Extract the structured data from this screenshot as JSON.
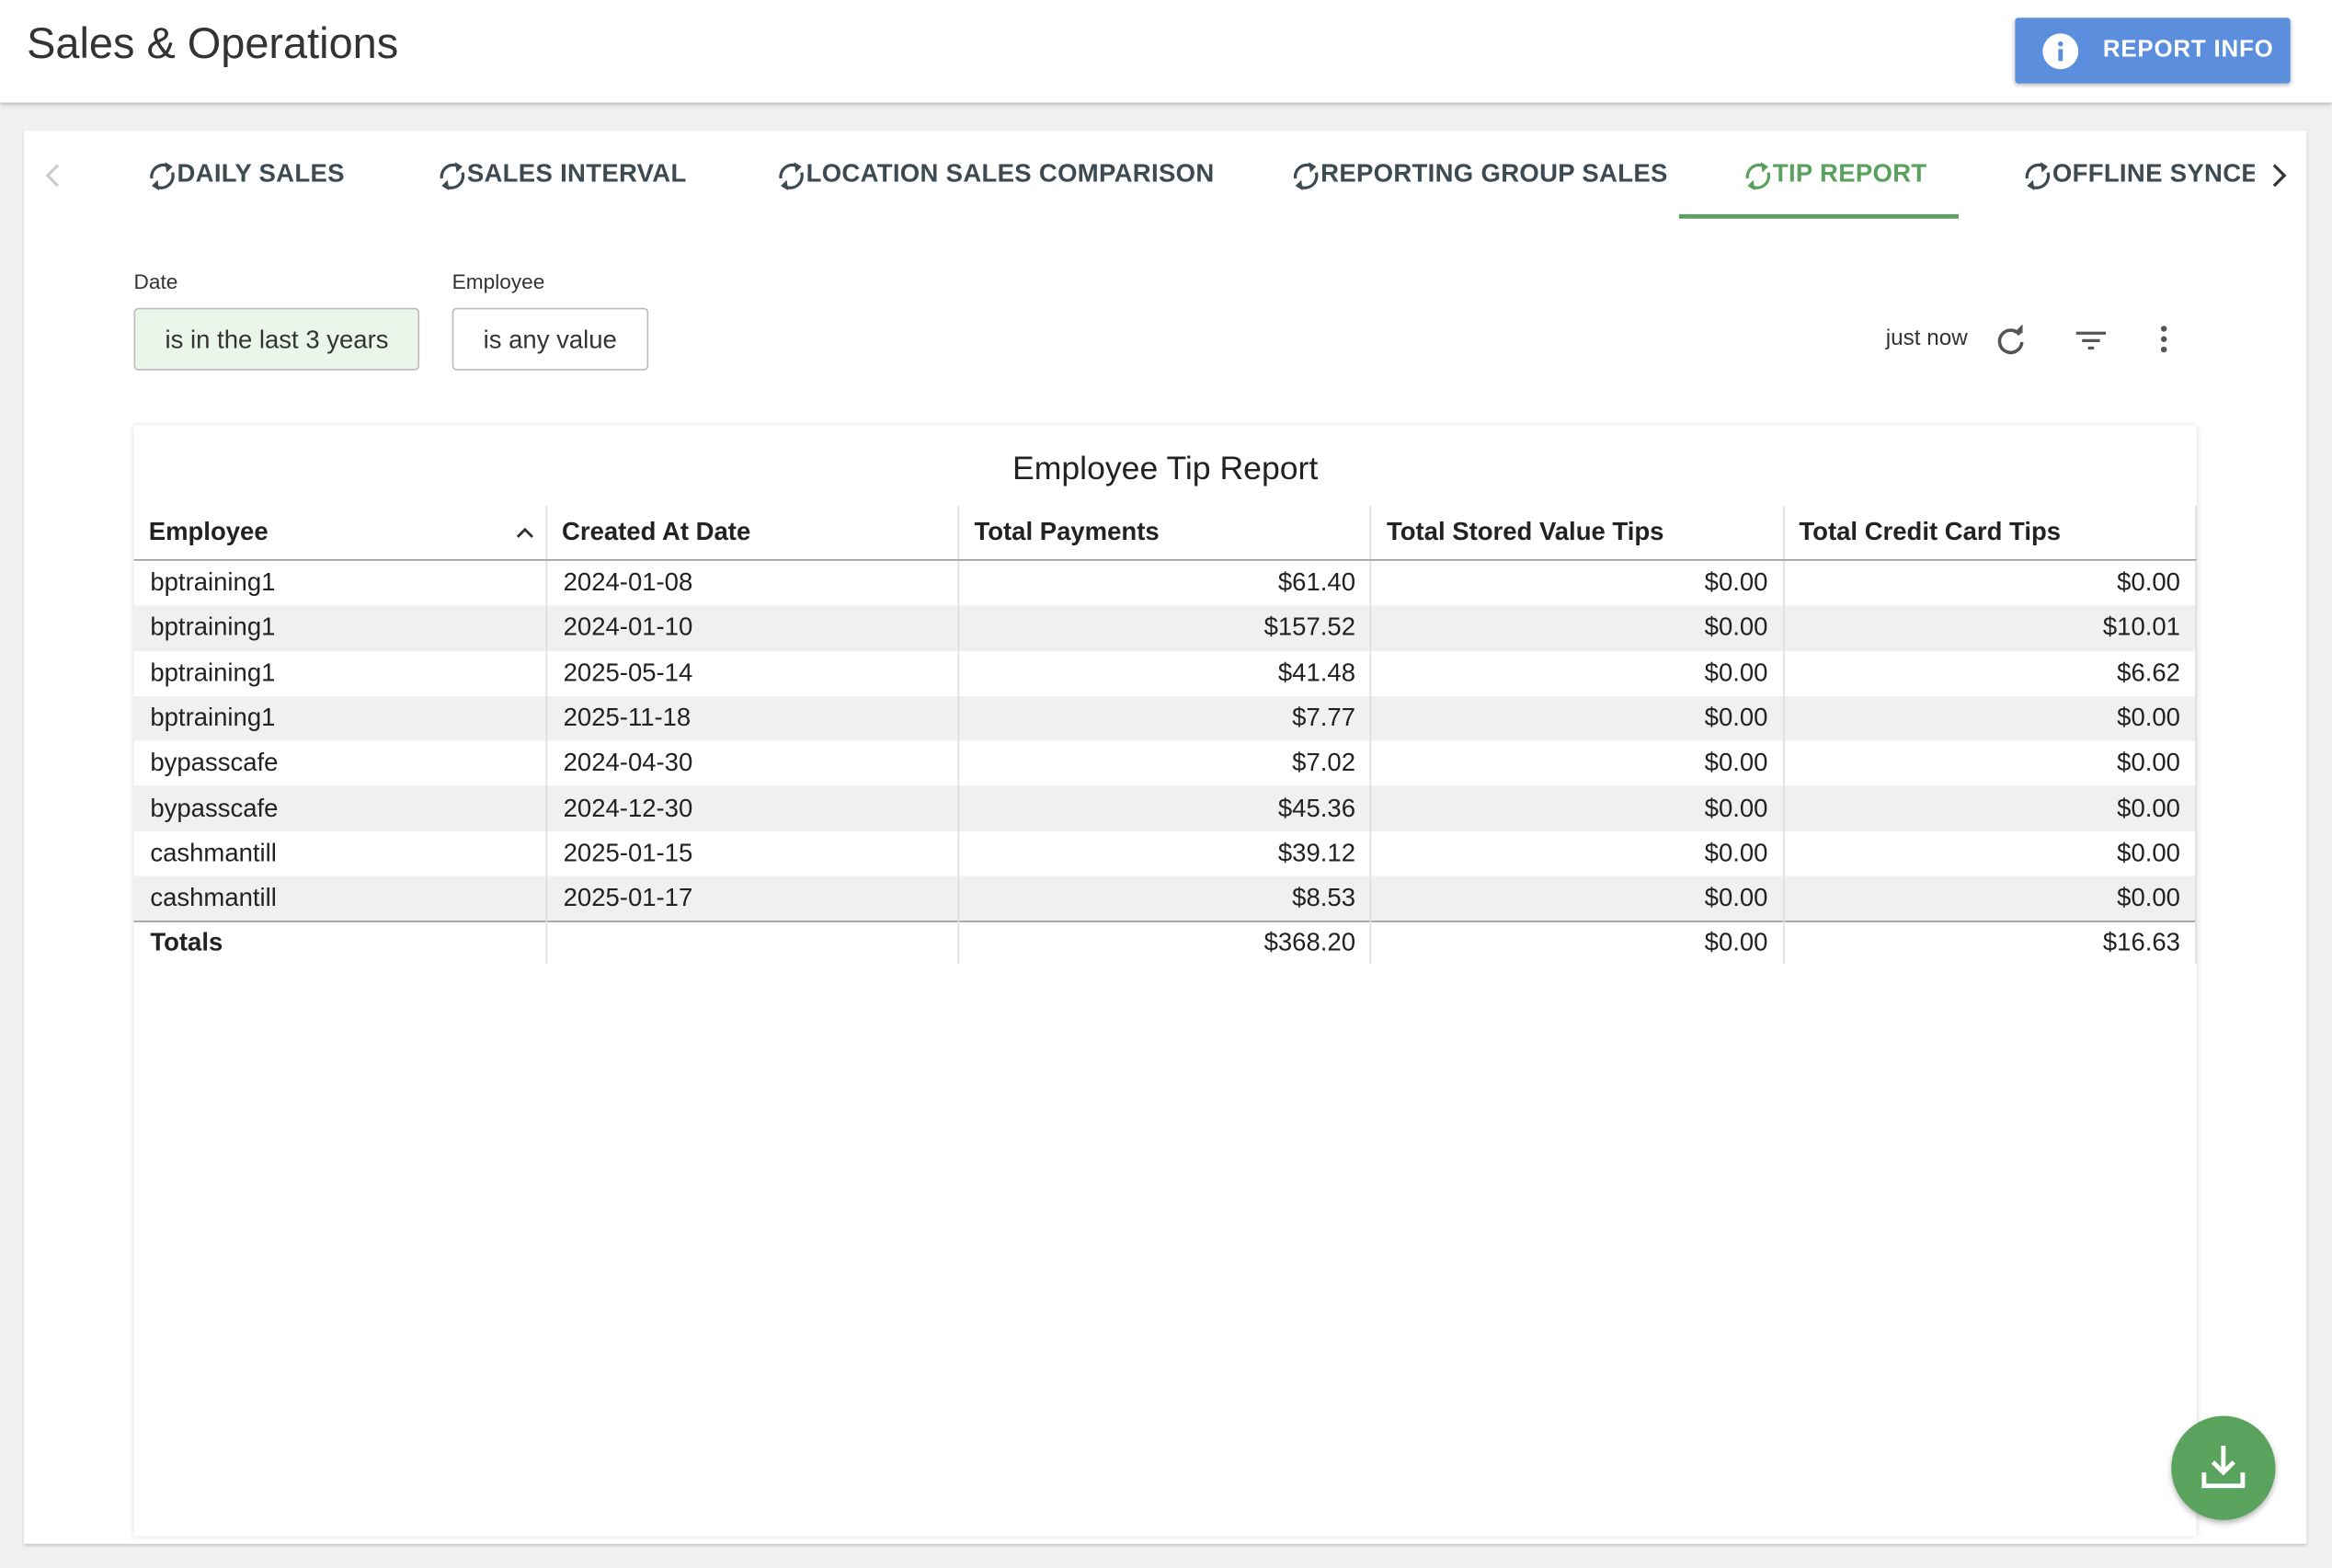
{
  "header": {
    "title": "Sales & Operations",
    "button": "REPORT INFO"
  },
  "tabs": [
    "DAILY SALES",
    "SALES INTERVAL",
    "LOCATION SALES COMPARISON",
    "REPORTING GROUP SALES",
    "TIP REPORT",
    "OFFLINE SYNCED"
  ],
  "active_tab": 4,
  "filters": [
    {
      "label": "Date",
      "value": "is in the last 3 years"
    },
    {
      "label": "Employee",
      "value": "is any value"
    }
  ],
  "status": "just now",
  "table": {
    "title": "Employee Tip Report",
    "columns": [
      "Employee",
      "Created At Date",
      "Total Payments",
      "Total Stored Value Tips",
      "Total Credit Card Tips"
    ],
    "rows": [
      [
        "bptraining1",
        "2024-01-08",
        "$61.40",
        "$0.00",
        "$0.00"
      ],
      [
        "bptraining1",
        "2024-01-10",
        "$157.52",
        "$0.00",
        "$10.01"
      ],
      [
        "bptraining1",
        "2025-05-14",
        "$41.48",
        "$0.00",
        "$6.62"
      ],
      [
        "bptraining1",
        "2025-11-18",
        "$7.77",
        "$0.00",
        "$0.00"
      ],
      [
        "bypasscafe",
        "2024-04-30",
        "$7.02",
        "$0.00",
        "$0.00"
      ],
      [
        "bypasscafe",
        "2024-12-30",
        "$45.36",
        "$0.00",
        "$0.00"
      ],
      [
        "cashmantill",
        "2025-01-15",
        "$39.12",
        "$0.00",
        "$0.00"
      ],
      [
        "cashmantill",
        "2025-01-17",
        "$8.53",
        "$0.00",
        "$0.00"
      ]
    ],
    "totals": [
      "Totals",
      null,
      "$368.20",
      "$0.00",
      "$16.63"
    ]
  }
}
